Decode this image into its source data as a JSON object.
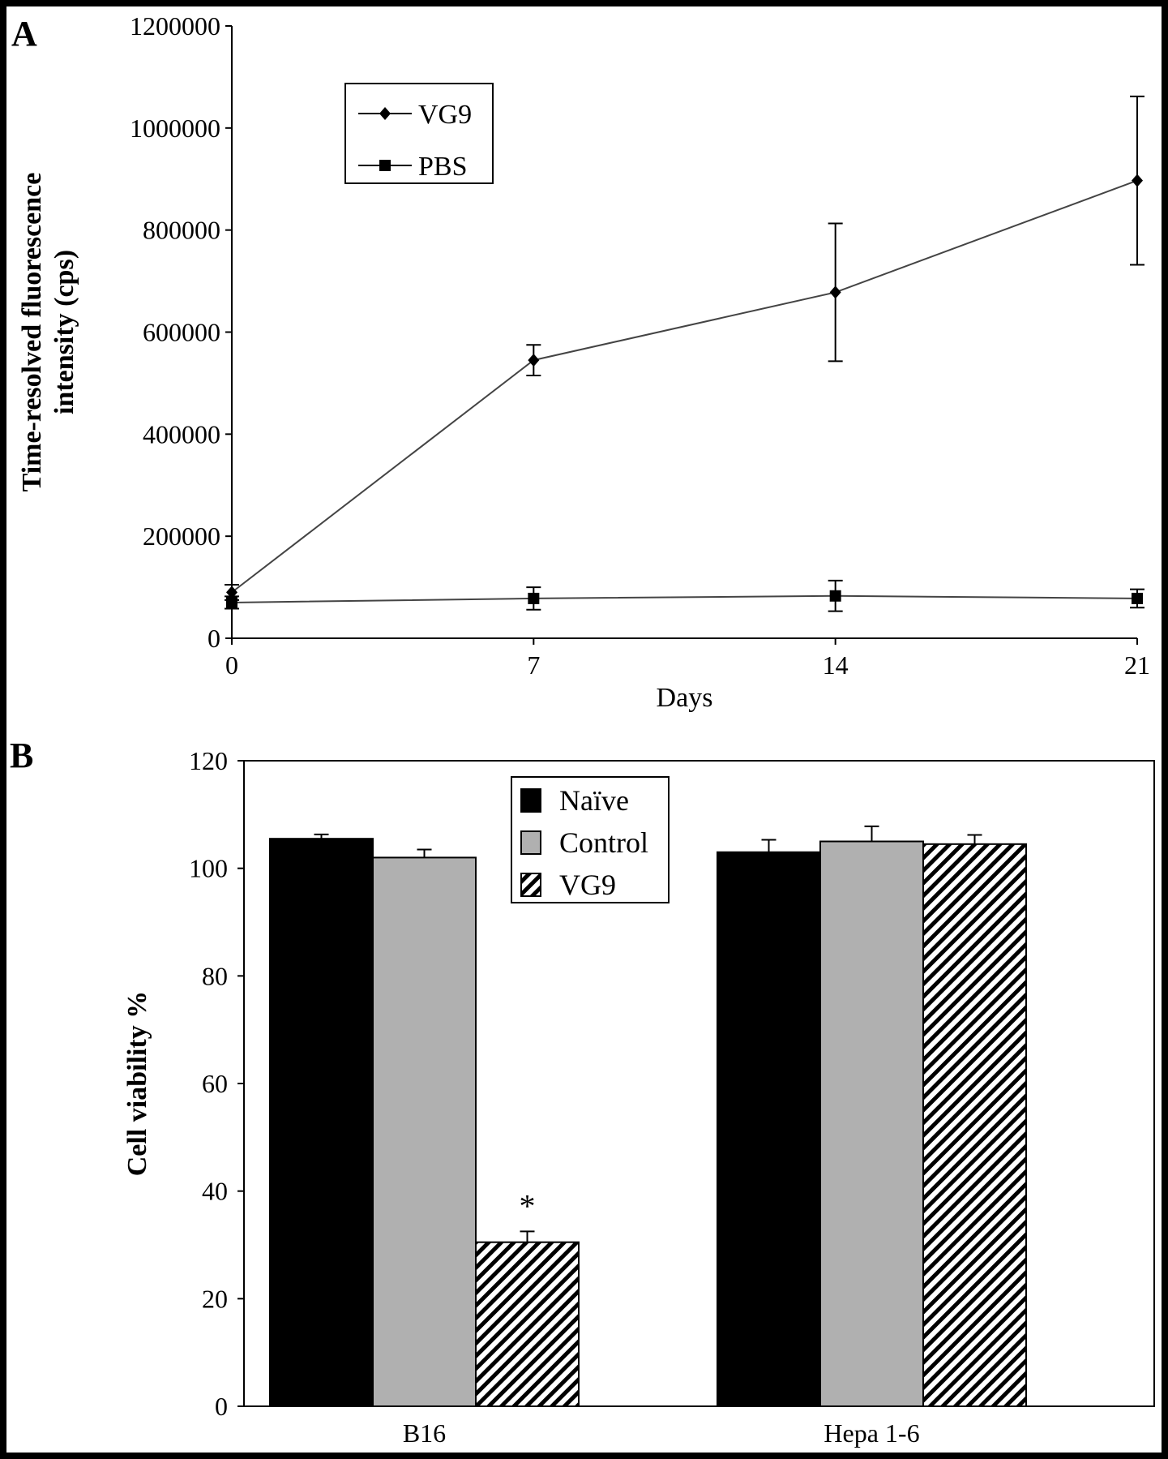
{
  "chart_data": [
    {
      "panel_label": "A",
      "type": "line",
      "xlabel": "Days",
      "ylabel_lines": [
        "Time-resolved fluorescence",
        "intensity (cps)"
      ],
      "x": [
        0,
        7,
        14,
        21
      ],
      "xticks": [
        "0",
        "7",
        "14",
        "21"
      ],
      "xlim": [
        0,
        21
      ],
      "ylim": [
        0,
        1200000
      ],
      "yticks": [
        "0",
        "200000",
        "400000",
        "600000",
        "800000",
        "1000000",
        "1200000"
      ],
      "grid": false,
      "legend_placement": "top-left",
      "series": [
        {
          "name": "VG9",
          "marker": "diamond",
          "values": [
            90000,
            545000,
            678000,
            897000
          ],
          "errors": [
            15000,
            30000,
            135000,
            165000
          ]
        },
        {
          "name": "PBS",
          "marker": "square",
          "values": [
            70000,
            78000,
            83000,
            78000
          ],
          "errors": [
            12000,
            22000,
            30000,
            18000
          ]
        }
      ]
    },
    {
      "panel_label": "B",
      "type": "bar",
      "ylabel": "Cell viability %",
      "categories": [
        "B16",
        "Hepa 1-6"
      ],
      "ylim": [
        0,
        120
      ],
      "yticks": [
        "0",
        "20",
        "40",
        "60",
        "80",
        "100",
        "120"
      ],
      "grid": false,
      "legend_placement": "top-center",
      "annotation": "*",
      "series": [
        {
          "name": "Naïve",
          "fill": "#000000",
          "values": [
            105.5,
            103
          ],
          "errors": [
            0.8,
            2.3
          ]
        },
        {
          "name": "Control",
          "fill": "#b0b0b0",
          "values": [
            102,
            105
          ],
          "errors": [
            1.5,
            2.8
          ]
        },
        {
          "name": "VG9",
          "fill": "hatch",
          "values": [
            30.5,
            104.5
          ],
          "errors": [
            2,
            1.7
          ]
        }
      ]
    }
  ]
}
